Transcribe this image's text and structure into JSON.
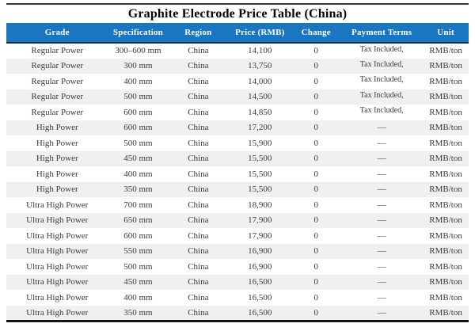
{
  "title": "Graphite Electrode Price Table (China)",
  "colors": {
    "header_bg": "#1b76c2",
    "header_bottom_border": "#0f2f4d",
    "row_stripe": "#f0f0f0",
    "body_text": "#3b3b3b",
    "top_rule": "#38383c",
    "bottom_rule": "#141414"
  },
  "table": {
    "columns": [
      "Grade",
      "Specification",
      "Region",
      "Price (RMB)",
      "Change",
      "Payment Terms",
      "Unit"
    ],
    "rows": [
      {
        "grade": "Regular Power",
        "spec": "300–600 mm",
        "region": "China",
        "price": "14,100",
        "change": "0",
        "payment": "Tax Included,",
        "unit": "RMB/ton"
      },
      {
        "grade": "Regular Power",
        "spec": "300 mm",
        "region": "China",
        "price": "13,750",
        "change": "0",
        "payment": "Tax Included,",
        "unit": "RMB/ton"
      },
      {
        "grade": "Regular Power",
        "spec": "400 mm",
        "region": "China",
        "price": "14,000",
        "change": "0",
        "payment": "Tax Included,",
        "unit": "RMB/ton"
      },
      {
        "grade": "Regular Power",
        "spec": "500 mm",
        "region": "China",
        "price": "14,500",
        "change": "0",
        "payment": "Tax Included,",
        "unit": "RMB/ton"
      },
      {
        "grade": "Regular Power",
        "spec": "600 mm",
        "region": "China",
        "price": "14,850",
        "change": "0",
        "payment": "Tax Included,",
        "unit": "RMB/ton"
      },
      {
        "grade": "High Power",
        "spec": "600 mm",
        "region": "China",
        "price": "17,200",
        "change": "0",
        "payment": "—",
        "unit": "RMB/ton"
      },
      {
        "grade": "High Power",
        "spec": "500 mm",
        "region": "China",
        "price": "15,900",
        "change": "0",
        "payment": "—",
        "unit": "RMB/ton"
      },
      {
        "grade": "High Power",
        "spec": "450 mm",
        "region": "China",
        "price": "15,500",
        "change": "0",
        "payment": "—",
        "unit": "RMB/ton"
      },
      {
        "grade": "High Power",
        "spec": "400 mm",
        "region": "China",
        "price": "15,500",
        "change": "0",
        "payment": "—",
        "unit": "RMB/ton"
      },
      {
        "grade": "High Power",
        "spec": "350 mm",
        "region": "China",
        "price": "15,500",
        "change": "0",
        "payment": "—",
        "unit": "RMB/ton"
      },
      {
        "grade": "Ultra High Power",
        "spec": "700 mm",
        "region": "China",
        "price": "18,900",
        "change": "0",
        "payment": "—",
        "unit": "RMB/ton"
      },
      {
        "grade": "Ultra High Power",
        "spec": "650 mm",
        "region": "China",
        "price": "17,900",
        "change": "0",
        "payment": "—",
        "unit": "RMB/ton"
      },
      {
        "grade": "Ultra High Power",
        "spec": "600 mm",
        "region": "China",
        "price": "17,900",
        "change": "0",
        "payment": "—",
        "unit": "RMB/ton"
      },
      {
        "grade": "Ultra High Power",
        "spec": "550 mm",
        "region": "China",
        "price": "16,900",
        "change": "0",
        "payment": "—",
        "unit": "RMB/ton"
      },
      {
        "grade": "Ultra High Power",
        "spec": "500 mm",
        "region": "China",
        "price": "16,900",
        "change": "0",
        "payment": "—",
        "unit": "RMB/ton"
      },
      {
        "grade": "Ultra High Power",
        "spec": "450 mm",
        "region": "China",
        "price": "16,500",
        "change": "0",
        "payment": "—",
        "unit": "RMB/ton"
      },
      {
        "grade": "Ultra High Power",
        "spec": "400 mm",
        "region": "China",
        "price": "16,500",
        "change": "0",
        "payment": "—",
        "unit": "RMB/ton"
      },
      {
        "grade": "Ultra High Power",
        "spec": "350 mm",
        "region": "China",
        "price": "16,500",
        "change": "0",
        "payment": "—",
        "unit": "RMB/ton"
      }
    ]
  }
}
